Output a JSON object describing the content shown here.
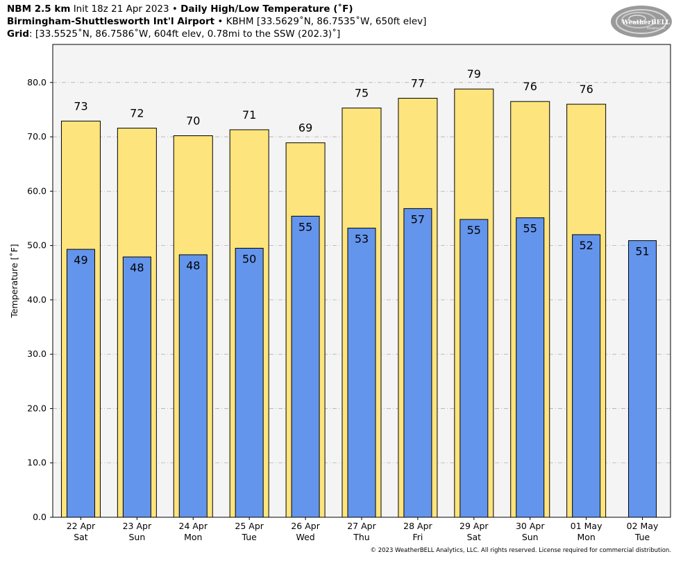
{
  "header": {
    "model": "NBM 2.5 km",
    "init": "Init 18z 21 Apr 2023",
    "sep1": " • ",
    "product": "Daily High/Low Temperature (˚F)",
    "station_name": "Birmingham-Shuttlesworth Int'l Airport",
    "sep2": " • ",
    "station_info": "KBHM [33.5629˚N, 86.7535˚W, 650ft elev]",
    "grid_label": "Grid",
    "grid_info": ": [33.5525˚N, 86.7586˚W, 604ft elev, 0.78mi to the SSW (202.3)˚]"
  },
  "logo": {
    "text": "WeatherBELL",
    "subtext": "Analytics LLC"
  },
  "footer": {
    "copyright": "© 2023 WeatherBELL Analytics, LLC. All rights reserved. License required for commercial distribution."
  },
  "colors": {
    "high_bar": "#fde47c",
    "low_bar": "#6495ed",
    "plot_bg": "#f4f4f4",
    "grid": "#b0b0b0"
  },
  "chart_data": {
    "type": "bar",
    "title": "Daily High/Low Temperature (˚F)",
    "ylabel": "Temperature [˚F]",
    "ylim": [
      0,
      87
    ],
    "yticks": [
      0,
      10,
      20,
      30,
      40,
      50,
      60,
      70,
      80
    ],
    "ytick_labels": [
      "0.0",
      "10.0",
      "20.0",
      "30.0",
      "40.0",
      "50.0",
      "60.0",
      "70.0",
      "80.0"
    ],
    "grid": true,
    "categories": [
      {
        "date": "22 Apr",
        "day": "Sat"
      },
      {
        "date": "23 Apr",
        "day": "Sun"
      },
      {
        "date": "24 Apr",
        "day": "Mon"
      },
      {
        "date": "25 Apr",
        "day": "Tue"
      },
      {
        "date": "26 Apr",
        "day": "Wed"
      },
      {
        "date": "27 Apr",
        "day": "Thu"
      },
      {
        "date": "28 Apr",
        "day": "Fri"
      },
      {
        "date": "29 Apr",
        "day": "Sat"
      },
      {
        "date": "30 Apr",
        "day": "Sun"
      },
      {
        "date": "01 May",
        "day": "Mon"
      },
      {
        "date": "02 May",
        "day": "Tue"
      }
    ],
    "series": [
      {
        "values": [
          72.9,
          71.6,
          70.2,
          71.3,
          68.9,
          75.3,
          77.1,
          78.8,
          76.5,
          76.0,
          null
        ],
        "labels": [
          "73",
          "72",
          "70",
          "71",
          "69",
          "75",
          "77",
          "79",
          "76",
          "76",
          ""
        ]
      },
      {
        "values": [
          49.3,
          47.9,
          48.3,
          49.5,
          55.4,
          53.2,
          56.8,
          54.8,
          55.1,
          52.0,
          50.9
        ],
        "labels": [
          "49",
          "48",
          "48",
          "50",
          "55",
          "53",
          "57",
          "55",
          "55",
          "52",
          "51"
        ]
      }
    ]
  }
}
